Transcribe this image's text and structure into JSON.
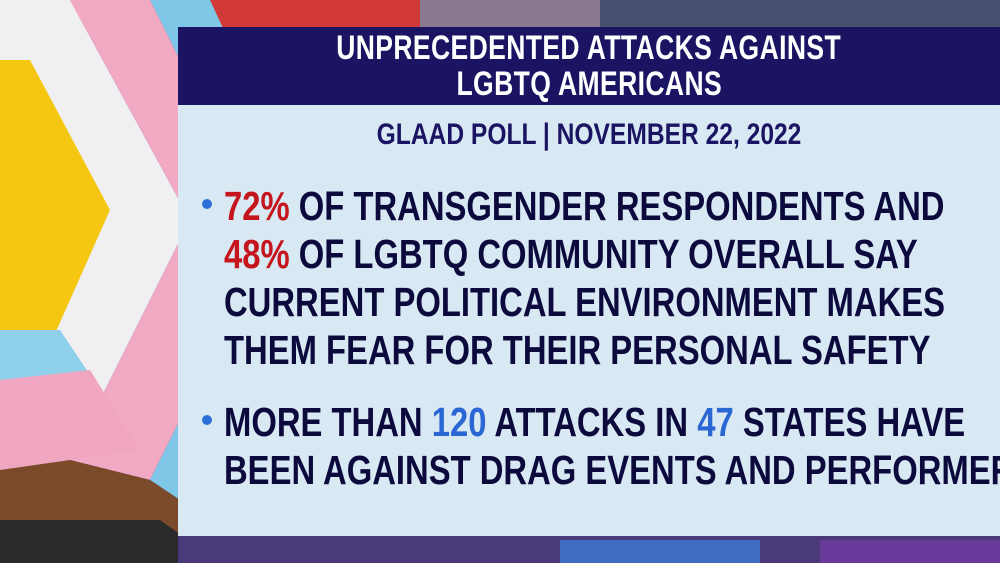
{
  "background": {
    "description_icon": "progress-pride-flag-background"
  },
  "header": {
    "line1": "UNPRECEDENTED ATTACKS AGAINST",
    "line2": "LGBTQ AMERICANS"
  },
  "subtitle": "GLAAD POLL | NOVEMBER 22, 2022",
  "bullet1": {
    "stat1": "72%",
    "text1": " OF TRANSGENDER RESPONDENTS AND",
    "stat2": "48%",
    "text2": " OF LGBTQ COMMUNITY OVERALL SAY",
    "line3": "CURRENT POLITICAL ENVIRONMENT MAKES",
    "line4": "THEM FEAR FOR THEIR PERSONAL SAFETY"
  },
  "bullet2": {
    "pre": "MORE THAN ",
    "stat1": "120",
    "mid": " ATTACKS IN ",
    "stat2": "47",
    "post": " STATES HAVE",
    "line2": "BEEN AGAINST DRAG EVENTS AND PERFORMERS"
  },
  "colors": {
    "header_bg": "#1a1462",
    "panel_bg": "#d9e9f4",
    "stat_red": "#c4161c",
    "stat_blue": "#2a66d4",
    "text": "#0c0a3d"
  }
}
